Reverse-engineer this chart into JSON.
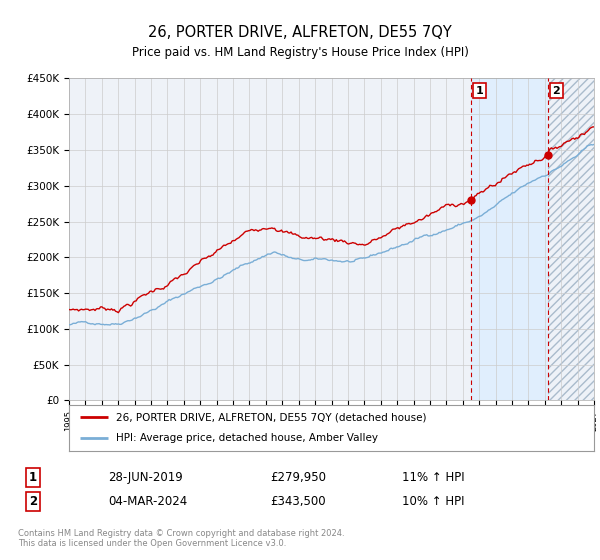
{
  "title": "26, PORTER DRIVE, ALFRETON, DE55 7QY",
  "subtitle": "Price paid vs. HM Land Registry's House Price Index (HPI)",
  "ylim": [
    0,
    450000
  ],
  "yticks": [
    0,
    50000,
    100000,
    150000,
    200000,
    250000,
    300000,
    350000,
    400000,
    450000
  ],
  "ytick_labels": [
    "£0",
    "£50K",
    "£100K",
    "£150K",
    "£200K",
    "£250K",
    "£300K",
    "£350K",
    "£400K",
    "£450K"
  ],
  "x_start_year": 1995,
  "x_end_year": 2027,
  "line_color_red": "#cc0000",
  "line_color_blue": "#7aaed6",
  "background_color": "#ffffff",
  "plot_bg_color": "#eef2f8",
  "grid_color": "#cccccc",
  "sale1_date": "28-JUN-2019",
  "sale1_price": 279950,
  "sale1_label": "1",
  "sale1_year": 2019.5,
  "sale2_date": "04-MAR-2024",
  "sale2_price": 343500,
  "sale2_label": "2",
  "sale2_year": 2024.17,
  "legend_line1": "26, PORTER DRIVE, ALFRETON, DE55 7QY (detached house)",
  "legend_line2": "HPI: Average price, detached house, Amber Valley",
  "footnote": "Contains HM Land Registry data © Crown copyright and database right 2024.\nThis data is licensed under the Open Government Licence v3.0.",
  "shade_color": "#ddeeff",
  "hatch_color": "#bbccdd"
}
